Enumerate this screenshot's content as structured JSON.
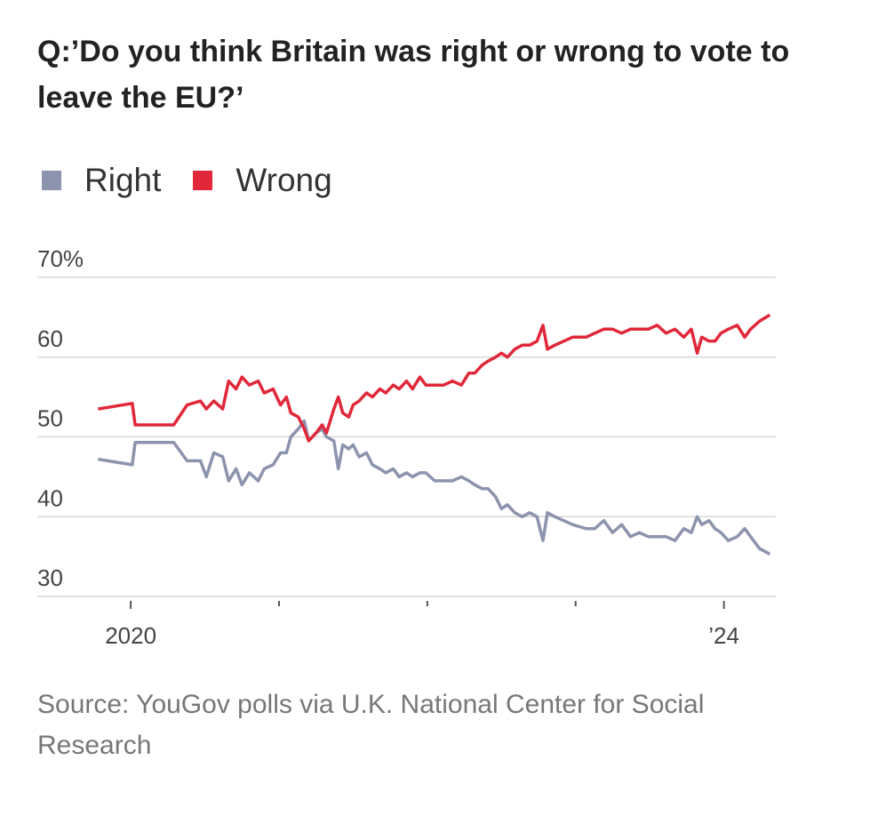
{
  "chart_data": {
    "type": "line",
    "title": "Q:’Do you think Britain was right or wrong to vote to leave the EU?’",
    "source": "Source: YouGov polls via U.K. National Center for Social Research",
    "x": [
      2019.78,
      2020.01,
      2020.03,
      2020.29,
      2020.38,
      2020.47,
      2020.51,
      2020.56,
      2020.62,
      2020.66,
      2020.71,
      2020.75,
      2020.8,
      2020.86,
      2020.9,
      2020.96,
      2021.01,
      2021.05,
      2021.08,
      2021.13,
      2021.17,
      2021.2,
      2021.25,
      2021.29,
      2021.32,
      2021.37,
      2021.4,
      2021.43,
      2021.47,
      2021.5,
      2021.54,
      2021.59,
      2021.63,
      2021.68,
      2021.72,
      2021.77,
      2021.81,
      2021.86,
      2021.9,
      2021.95,
      2021.99,
      2022.05,
      2022.11,
      2022.17,
      2022.23,
      2022.28,
      2022.32,
      2022.37,
      2022.41,
      2022.46,
      2022.5,
      2022.54,
      2022.59,
      2022.64,
      2022.69,
      2022.74,
      2022.78,
      2022.81,
      2022.86,
      2022.92,
      2022.98,
      2023.07,
      2023.13,
      2023.19,
      2023.25,
      2023.31,
      2023.37,
      2023.43,
      2023.49,
      2023.55,
      2023.61,
      2023.67,
      2023.73,
      2023.78,
      2023.82,
      2023.85,
      2023.9,
      2023.94,
      2023.98,
      2024.03,
      2024.09,
      2024.14,
      2024.18,
      2024.24,
      2024.31
    ],
    "series": [
      {
        "name": "Right",
        "color": "#8c93ad",
        "values": [
          47.2,
          46.5,
          49.3,
          49.3,
          47,
          47,
          45,
          48,
          47.5,
          44.5,
          46,
          44,
          45.5,
          44.5,
          46,
          46.5,
          48,
          48,
          50,
          51,
          52,
          49.5,
          50.5,
          51,
          50,
          49.5,
          46,
          49,
          48.5,
          49,
          47.5,
          48,
          46.5,
          46,
          45.5,
          46,
          45,
          45.5,
          45,
          45.5,
          45.5,
          44.5,
          44.5,
          44.5,
          45,
          44.5,
          44,
          43.5,
          43.5,
          42.5,
          41,
          41.5,
          40.5,
          40,
          40.5,
          40,
          37,
          40.5,
          40,
          39.5,
          39,
          38.5,
          38.5,
          39.5,
          38,
          39,
          37.5,
          38,
          37.5,
          37.5,
          37.5,
          37,
          38.5,
          38,
          40,
          39,
          39.5,
          38.5,
          38,
          37,
          37.5,
          38.5,
          37.5,
          36,
          35.3
        ]
      },
      {
        "name": "Wrong",
        "color": "#e0283a",
        "values": [
          53.5,
          54.2,
          51.5,
          51.5,
          54,
          54.5,
          53.5,
          54.5,
          53.5,
          57,
          56,
          57.5,
          56.5,
          57,
          55.5,
          56,
          54,
          55,
          53,
          52.5,
          51,
          49.5,
          50.5,
          51.5,
          50.5,
          53.5,
          55,
          53,
          52.5,
          54,
          54.5,
          55.5,
          55,
          56,
          55.5,
          56.5,
          56,
          57,
          56,
          57.5,
          56.5,
          56.5,
          56.5,
          57,
          56.5,
          58,
          58,
          59,
          59.5,
          60,
          60.5,
          60,
          61,
          61.5,
          61.5,
          62,
          64,
          61,
          61.5,
          62,
          62.5,
          62.5,
          63,
          63.5,
          63.5,
          63,
          63.5,
          63.5,
          63.5,
          64,
          63,
          63.5,
          62.5,
          63.5,
          60.5,
          62.5,
          62,
          62,
          63,
          63.5,
          64,
          62.5,
          63.5,
          64.5,
          65.3
        ]
      }
    ],
    "xlim": [
      2019.37,
      2024.35
    ],
    "xticks": [
      2020,
      {
        "value": 2024,
        "label": "’24"
      }
    ],
    "xminorticks": [
      2021,
      2022,
      2023
    ],
    "ylim": [
      30,
      70
    ],
    "yticks": [
      30,
      40,
      50,
      60,
      {
        "value": 70,
        "label": "70%"
      }
    ],
    "grid": true,
    "legend": "top"
  }
}
